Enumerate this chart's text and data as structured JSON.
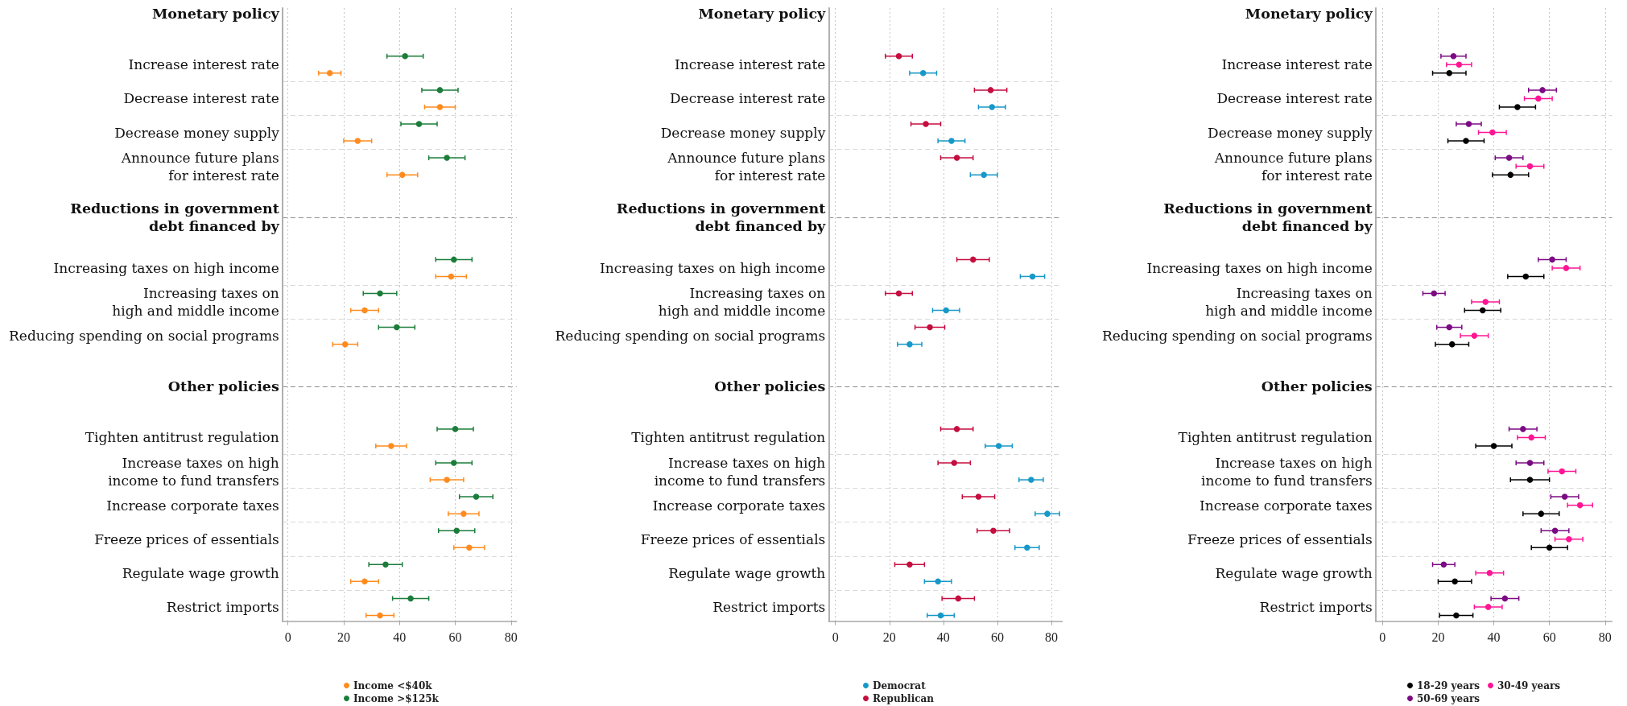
{
  "chart_data": [
    {
      "type": "scatter",
      "orientation": "horizontal",
      "categories": [
        "Monetary policy",
        "Increase interest rate",
        "Decrease interest rate",
        "Decrease money supply",
        "Announce future plans\nfor interest rate",
        "Reductions in government\ndebt financed by",
        "Increasing taxes on high income",
        "Increasing taxes on\nhigh and middle income",
        "Reducing spending on social programs",
        "Other policies",
        "Tighten antitrust regulation",
        "Increase taxes on high\nincome to fund transfers",
        "Increase corporate taxes",
        "Freeze prices of essentials",
        "Regulate wage growth",
        "Restrict imports"
      ],
      "series": [
        {
          "name": "Income <$40k",
          "color": "#ff8b1f",
          "values": [
            null,
            15,
            54.5,
            25,
            41,
            null,
            58.5,
            27.5,
            20.5,
            null,
            37,
            57,
            63,
            65,
            27.5,
            33
          ],
          "errors": [
            null,
            4,
            5.5,
            5,
            5.5,
            null,
            5.5,
            5,
            4.5,
            null,
            5.5,
            6,
            5.5,
            5.5,
            5,
            5
          ]
        },
        {
          "name": "Income >$125k",
          "color": "#1b7d3a",
          "values": [
            null,
            42,
            54.5,
            47,
            57,
            null,
            59.5,
            33,
            39,
            null,
            60,
            59.5,
            67.5,
            60.5,
            35,
            44
          ],
          "errors": [
            null,
            6.5,
            6.5,
            6.5,
            6.5,
            null,
            6.5,
            6,
            6.5,
            null,
            6.5,
            6.5,
            6,
            6.5,
            6,
            6.5
          ]
        }
      ],
      "xlim": [
        -2,
        82
      ],
      "xticks": [
        0,
        20,
        40,
        60,
        80
      ],
      "grid": true,
      "legend": "bottom",
      "marker": "circle"
    },
    {
      "type": "scatter",
      "orientation": "horizontal",
      "categories": [
        "Monetary policy",
        "Increase interest rate",
        "Decrease interest rate",
        "Decrease money supply",
        "Announce future plans\nfor interest rate",
        "Reductions in government\ndebt financed by",
        "Increasing taxes on high income",
        "Increasing taxes on\nhigh and middle income",
        "Reducing spending on social programs",
        "Other policies",
        "Tighten antitrust regulation",
        "Increase taxes on high\nincome to fund transfers",
        "Increase corporate taxes",
        "Freeze prices of essentials",
        "Regulate wage growth",
        "Restrict imports"
      ],
      "series": [
        {
          "name": "Democrat",
          "color": "#1698c8",
          "values": [
            null,
            32.5,
            58,
            43,
            55,
            null,
            73,
            41,
            27.5,
            null,
            60.5,
            72.5,
            78.5,
            71,
            38,
            39
          ],
          "errors": [
            null,
            5,
            5,
            5,
            5,
            null,
            4.5,
            5,
            4.5,
            null,
            5,
            4.5,
            4.5,
            4.5,
            5,
            5
          ]
        },
        {
          "name": "Republican",
          "color": "#c50d3f",
          "values": [
            null,
            23.5,
            57.5,
            33.5,
            45,
            null,
            51,
            23.5,
            35,
            null,
            45,
            44,
            53,
            58.5,
            27.5,
            45.5
          ],
          "errors": [
            null,
            5,
            6,
            5.5,
            6,
            null,
            6,
            5,
            5.5,
            null,
            6,
            6,
            6,
            6,
            5.5,
            6
          ]
        }
      ],
      "xlim": [
        -2.5,
        84
      ],
      "xticks": [
        0,
        20,
        40,
        60,
        80
      ],
      "grid": true,
      "legend": "bottom",
      "marker": "circle"
    },
    {
      "type": "scatter",
      "orientation": "horizontal",
      "categories": [
        "Monetary policy",
        "Increase interest rate",
        "Decrease interest rate",
        "Decrease money supply",
        "Announce future plans\nfor interest rate",
        "Reductions in government\ndebt financed by",
        "Increasing taxes on high income",
        "Increasing taxes on\nhigh and middle income",
        "Reducing spending on social programs",
        "Other policies",
        "Tighten antitrust regulation",
        "Increase taxes on high\nincome to fund transfers",
        "Increase corporate taxes",
        "Freeze prices of essentials",
        "Regulate wage growth",
        "Restrict imports"
      ],
      "series": [
        {
          "name": "18-29 years",
          "color": "#000000",
          "values": [
            null,
            24,
            48.5,
            30,
            46,
            null,
            51.5,
            36,
            25,
            null,
            40,
            53,
            57,
            60,
            26,
            26.5
          ],
          "errors": [
            null,
            6,
            6.5,
            6.5,
            6.5,
            null,
            6.5,
            6.5,
            6,
            null,
            6.5,
            7,
            6.5,
            6.5,
            6,
            6
          ]
        },
        {
          "name": "30-49 years",
          "color": "#ff1493",
          "values": [
            null,
            27.5,
            56,
            39.5,
            53,
            null,
            66,
            37,
            33,
            null,
            53.5,
            64.5,
            71,
            67,
            38.5,
            38
          ],
          "errors": [
            null,
            4.5,
            5,
            5,
            5,
            null,
            5,
            5,
            5,
            null,
            5,
            5,
            4.5,
            5,
            5,
            5
          ]
        },
        {
          "name": "50-69 years",
          "color": "#7b0a83",
          "values": [
            null,
            25.5,
            57.5,
            31,
            45.5,
            null,
            61,
            18.5,
            24,
            null,
            50.5,
            53,
            65.5,
            62,
            22,
            44
          ],
          "errors": [
            null,
            4.5,
            5,
            4.5,
            5,
            null,
            5,
            4,
            4.5,
            null,
            5,
            5,
            5,
            5,
            4,
            5
          ]
        }
      ],
      "xlim": [
        -2.5,
        82.5
      ],
      "xticks": [
        0,
        20,
        40,
        60,
        80
      ],
      "grid": true,
      "legend": "bottom",
      "marker": "circle"
    }
  ]
}
